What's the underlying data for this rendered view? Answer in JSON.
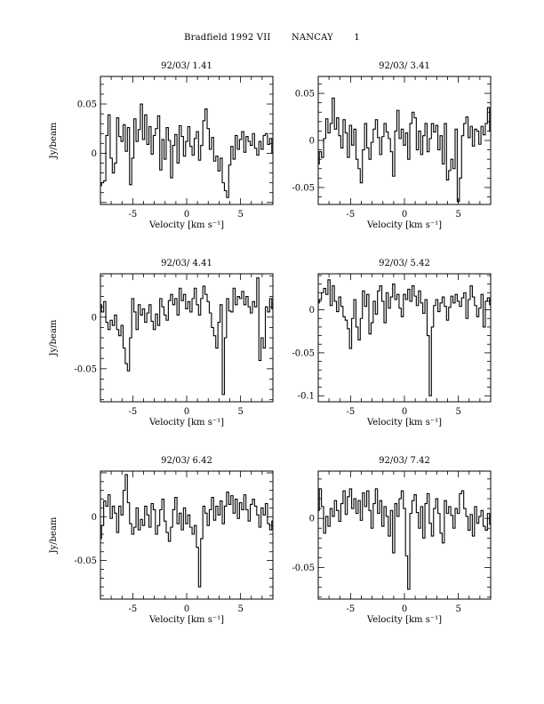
{
  "header": {
    "object": "Bradfield 1992 VII",
    "observatory": "NANCAY",
    "page_number": "1"
  },
  "chart_data": [
    {
      "type": "line",
      "title": "92/03/ 1.41",
      "xlabel": "Velocity [km s⁻¹]",
      "ylabel": "Jy/beam",
      "xlim": [
        -8,
        8
      ],
      "ylim": [
        -0.052,
        0.078
      ],
      "xticks": [
        "-5",
        "0",
        "5"
      ],
      "yticks": [
        {
          "value": 0,
          "label": "0"
        },
        {
          "value": 0.05,
          "label": "0.05"
        }
      ],
      "x": [
        -8.0,
        -7.8,
        -7.6,
        -7.4,
        -7.2,
        -7.0,
        -6.8,
        -6.6,
        -6.4,
        -6.2,
        -6.0,
        -5.8,
        -5.6,
        -5.4,
        -5.2,
        -5.0,
        -4.8,
        -4.6,
        -4.4,
        -4.2,
        -4.0,
        -3.8,
        -3.6,
        -3.4,
        -3.2,
        -3.0,
        -2.8,
        -2.6,
        -2.4,
        -2.2,
        -2.0,
        -1.8,
        -1.6,
        -1.4,
        -1.2,
        -1.0,
        -0.8,
        -0.6,
        -0.4,
        -0.2,
        0.0,
        0.2,
        0.4,
        0.6,
        0.8,
        1.0,
        1.2,
        1.4,
        1.6,
        1.8,
        2.0,
        2.2,
        2.4,
        2.6,
        2.8,
        3.0,
        3.2,
        3.4,
        3.6,
        3.8,
        4.0,
        4.2,
        4.4,
        4.6,
        4.8,
        5.0,
        5.2,
        5.4,
        5.6,
        5.8,
        6.0,
        6.2,
        6.4,
        6.6,
        6.8,
        7.0,
        7.2,
        7.4,
        7.6,
        7.8,
        8.0
      ],
      "values": [
        -0.033,
        -0.03,
        -0.028,
        0.018,
        0.039,
        -0.005,
        -0.02,
        -0.01,
        0.036,
        0.017,
        0.012,
        0.029,
        0.002,
        0.026,
        -0.032,
        -0.005,
        0.035,
        0.012,
        0.024,
        0.05,
        0.014,
        0.039,
        0.009,
        0.027,
        -0.001,
        0.018,
        0.025,
        0.038,
        -0.017,
        0.014,
        -0.006,
        0.026,
        0.013,
        -0.025,
        0.008,
        0.019,
        -0.01,
        0.028,
        0.017,
        -0.003,
        0.012,
        0.027,
        0.007,
        -0.002,
        0.015,
        0.022,
        -0.007,
        0.008,
        0.033,
        0.045,
        0.025,
        0.004,
        0.016,
        -0.008,
        -0.003,
        -0.018,
        -0.005,
        -0.03,
        -0.038,
        -0.045,
        -0.012,
        0.007,
        -0.006,
        0.018,
        0.004,
        0.014,
        0.022,
        0.001,
        0.017,
        0.012,
        0.008,
        0.02,
        0.005,
        -0.002,
        0.012,
        0.004,
        0.018,
        0.02,
        0.009,
        0.015,
        0.0
      ],
      "grid": false
    },
    {
      "type": "line",
      "title": "92/03/ 3.41",
      "xlabel": "Velocity [km s⁻¹]",
      "ylabel": "",
      "xlim": [
        -8,
        8
      ],
      "ylim": [
        -0.068,
        0.068
      ],
      "xticks": [
        "-5",
        "0",
        "5"
      ],
      "yticks": [
        {
          "value": -0.05,
          "label": "-0.05"
        },
        {
          "value": 0,
          "label": "0"
        },
        {
          "value": 0.05,
          "label": "0.05"
        }
      ],
      "x": [
        -8.0,
        -7.8,
        -7.6,
        -7.4,
        -7.2,
        -7.0,
        -6.8,
        -6.6,
        -6.4,
        -6.2,
        -6.0,
        -5.8,
        -5.6,
        -5.4,
        -5.2,
        -5.0,
        -4.8,
        -4.6,
        -4.4,
        -4.2,
        -4.0,
        -3.8,
        -3.6,
        -3.4,
        -3.2,
        -3.0,
        -2.8,
        -2.6,
        -2.4,
        -2.2,
        -2.0,
        -1.8,
        -1.6,
        -1.4,
        -1.2,
        -1.0,
        -0.8,
        -0.6,
        -0.4,
        -0.2,
        0.0,
        0.2,
        0.4,
        0.6,
        0.8,
        1.0,
        1.2,
        1.4,
        1.6,
        1.8,
        2.0,
        2.2,
        2.4,
        2.6,
        2.8,
        3.0,
        3.2,
        3.4,
        3.6,
        3.8,
        4.0,
        4.2,
        4.4,
        4.6,
        4.8,
        5.0,
        5.2,
        5.4,
        5.6,
        5.8,
        6.0,
        6.2,
        6.4,
        6.6,
        6.8,
        7.0,
        7.2,
        7.4,
        7.6,
        7.8,
        8.0
      ],
      "values": [
        -0.025,
        -0.012,
        -0.018,
        0.002,
        0.023,
        0.008,
        0.018,
        0.045,
        0.012,
        0.024,
        0.005,
        -0.008,
        0.022,
        0.008,
        -0.018,
        0.016,
        -0.005,
        0.012,
        -0.02,
        -0.03,
        -0.045,
        -0.01,
        0.018,
        -0.008,
        -0.02,
        -0.002,
        0.012,
        0.022,
        0.003,
        -0.015,
        0.004,
        0.018,
        0.009,
        0.002,
        -0.012,
        -0.038,
        0.01,
        0.032,
        0.002,
        0.012,
        -0.005,
        0.008,
        -0.02,
        0.018,
        0.03,
        0.024,
        -0.01,
        0.01,
        -0.015,
        0.005,
        0.018,
        -0.012,
        0.002,
        0.018,
        0.009,
        0.016,
        -0.01,
        0.005,
        -0.025,
        0.018,
        -0.042,
        -0.032,
        -0.02,
        -0.03,
        0.012,
        -0.065,
        -0.04,
        0.005,
        0.018,
        0.025,
        0.003,
        0.015,
        -0.006,
        0.012,
        0.01,
        -0.004,
        0.015,
        0.006,
        0.018,
        0.035,
        0.01
      ],
      "grid": false
    },
    {
      "type": "line",
      "title": "92/03/ 4.41",
      "xlabel": "Velocity [km s⁻¹]",
      "ylabel": "Jy/beam",
      "xlim": [
        -8,
        8
      ],
      "ylim": [
        -0.082,
        0.042
      ],
      "xticks": [
        "-5",
        "0",
        "5"
      ],
      "yticks": [
        {
          "value": -0.05,
          "label": "-0.05"
        },
        {
          "value": 0,
          "label": "0"
        }
      ],
      "x": [
        -8.0,
        -7.8,
        -7.6,
        -7.4,
        -7.2,
        -7.0,
        -6.8,
        -6.6,
        -6.4,
        -6.2,
        -6.0,
        -5.8,
        -5.6,
        -5.4,
        -5.2,
        -5.0,
        -4.8,
        -4.6,
        -4.4,
        -4.2,
        -4.0,
        -3.8,
        -3.6,
        -3.4,
        -3.2,
        -3.0,
        -2.8,
        -2.6,
        -2.4,
        -2.2,
        -2.0,
        -1.8,
        -1.6,
        -1.4,
        -1.2,
        -1.0,
        -0.8,
        -0.6,
        -0.4,
        -0.2,
        0.0,
        0.2,
        0.4,
        0.6,
        0.8,
        1.0,
        1.2,
        1.4,
        1.6,
        1.8,
        2.0,
        2.2,
        2.4,
        2.6,
        2.8,
        3.0,
        3.2,
        3.4,
        3.6,
        3.8,
        4.0,
        4.2,
        4.4,
        4.6,
        4.8,
        5.0,
        5.2,
        5.4,
        5.6,
        5.8,
        6.0,
        6.2,
        6.4,
        6.6,
        6.8,
        7.0,
        7.2,
        7.4,
        7.6,
        7.8,
        8.0
      ],
      "values": [
        0.012,
        0.005,
        0.015,
        -0.005,
        -0.012,
        -0.003,
        -0.008,
        0.002,
        -0.012,
        -0.018,
        -0.008,
        -0.03,
        -0.045,
        -0.052,
        -0.02,
        0.018,
        0.005,
        -0.012,
        0.012,
        0.002,
        0.008,
        -0.005,
        0.004,
        0.012,
        -0.004,
        -0.012,
        0.003,
        -0.008,
        0.018,
        0.01,
        0.002,
        -0.003,
        0.016,
        0.022,
        0.012,
        0.018,
        0.002,
        0.028,
        0.016,
        0.022,
        0.008,
        0.015,
        0.005,
        0.018,
        0.028,
        0.012,
        0.002,
        0.018,
        0.03,
        0.022,
        0.015,
        0.004,
        -0.01,
        -0.018,
        -0.03,
        -0.005,
        0.012,
        -0.075,
        -0.02,
        0.018,
        0.006,
        0.005,
        0.028,
        0.012,
        0.02,
        0.018,
        0.025,
        0.012,
        0.02,
        0.01,
        0.004,
        0.015,
        0.01,
        0.038,
        -0.042,
        -0.02,
        -0.03,
        0.01,
        0.005,
        0.018,
        0.008
      ],
      "grid": false
    },
    {
      "type": "line",
      "title": "92/03/ 5.42",
      "xlabel": "Velocity [km s⁻¹]",
      "ylabel": "",
      "xlim": [
        -8,
        8
      ],
      "ylim": [
        -0.107,
        0.042
      ],
      "xticks": [
        "-5",
        "0",
        "5"
      ],
      "yticks": [
        {
          "value": -0.1,
          "label": "-0.1"
        },
        {
          "value": -0.05,
          "label": "-0.05"
        },
        {
          "value": 0,
          "label": "0"
        }
      ],
      "x": [
        -8.0,
        -7.8,
        -7.6,
        -7.4,
        -7.2,
        -7.0,
        -6.8,
        -6.6,
        -6.4,
        -6.2,
        -6.0,
        -5.8,
        -5.6,
        -5.4,
        -5.2,
        -5.0,
        -4.8,
        -4.6,
        -4.4,
        -4.2,
        -4.0,
        -3.8,
        -3.6,
        -3.4,
        -3.2,
        -3.0,
        -2.8,
        -2.6,
        -2.4,
        -2.2,
        -2.0,
        -1.8,
        -1.6,
        -1.4,
        -1.2,
        -1.0,
        -0.8,
        -0.6,
        -0.4,
        -0.2,
        0.0,
        0.2,
        0.4,
        0.6,
        0.8,
        1.0,
        1.2,
        1.4,
        1.6,
        1.8,
        2.0,
        2.2,
        2.4,
        2.6,
        2.8,
        3.0,
        3.2,
        3.4,
        3.6,
        3.8,
        4.0,
        4.2,
        4.4,
        4.6,
        4.8,
        5.0,
        5.2,
        5.4,
        5.6,
        5.8,
        6.0,
        6.2,
        6.4,
        6.6,
        6.8,
        7.0,
        7.2,
        7.4,
        7.6,
        7.8,
        8.0
      ],
      "values": [
        0.008,
        0.012,
        0.02,
        0.025,
        0.018,
        0.035,
        0.005,
        0.028,
        0.01,
        -0.002,
        0.015,
        0.004,
        -0.008,
        -0.012,
        -0.022,
        -0.045,
        -0.01,
        0.012,
        -0.02,
        -0.035,
        -0.01,
        0.022,
        0.004,
        0.018,
        -0.028,
        -0.015,
        0.01,
        -0.005,
        0.022,
        0.028,
        0.01,
        -0.015,
        0.02,
        0.002,
        0.015,
        0.03,
        0.012,
        0.018,
        0.002,
        -0.008,
        0.018,
        0.012,
        0.024,
        0.01,
        0.028,
        0.016,
        0.005,
        0.022,
        0.008,
        -0.004,
        0.012,
        -0.03,
        -0.1,
        -0.02,
        0.005,
        0.012,
        -0.002,
        0.008,
        0.015,
        0.004,
        -0.012,
        0.003,
        0.016,
        0.008,
        0.018,
        0.01,
        0.004,
        0.014,
        0.02,
        -0.01,
        0.012,
        0.028,
        0.015,
        0.005,
        -0.008,
        0.002,
        0.018,
        -0.02,
        0.01,
        0.014,
        0.006
      ],
      "grid": false
    },
    {
      "type": "line",
      "title": "92/03/ 6.42",
      "xlabel": "Velocity [km s⁻¹]",
      "ylabel": "Jy/beam",
      "xlim": [
        -8,
        8
      ],
      "ylim": [
        -0.094,
        0.052
      ],
      "xticks": [
        "-5",
        "0",
        "5"
      ],
      "yticks": [
        {
          "value": -0.05,
          "label": "-0.05"
        },
        {
          "value": 0,
          "label": "0"
        }
      ],
      "x": [
        -8.0,
        -7.8,
        -7.6,
        -7.4,
        -7.2,
        -7.0,
        -6.8,
        -6.6,
        -6.4,
        -6.2,
        -6.0,
        -5.8,
        -5.6,
        -5.4,
        -5.2,
        -5.0,
        -4.8,
        -4.6,
        -4.4,
        -4.2,
        -4.0,
        -3.8,
        -3.6,
        -3.4,
        -3.2,
        -3.0,
        -2.8,
        -2.6,
        -2.4,
        -2.2,
        -2.0,
        -1.8,
        -1.6,
        -1.4,
        -1.2,
        -1.0,
        -0.8,
        -0.6,
        -0.4,
        -0.2,
        0.0,
        0.2,
        0.4,
        0.6,
        0.8,
        1.0,
        1.2,
        1.4,
        1.6,
        1.8,
        2.0,
        2.2,
        2.4,
        2.6,
        2.8,
        3.0,
        3.2,
        3.4,
        3.6,
        3.8,
        4.0,
        4.2,
        4.4,
        4.6,
        4.8,
        5.0,
        5.2,
        5.4,
        5.6,
        5.8,
        6.0,
        6.2,
        6.4,
        6.6,
        6.8,
        7.0,
        7.2,
        7.4,
        7.6,
        7.8,
        8.0
      ],
      "values": [
        -0.025,
        -0.01,
        0.018,
        0.012,
        0.025,
        -0.002,
        0.012,
        0.004,
        -0.018,
        0.012,
        0.002,
        0.03,
        0.048,
        0.016,
        -0.008,
        -0.02,
        -0.012,
        0.01,
        -0.015,
        -0.003,
        -0.01,
        0.012,
        0.002,
        -0.012,
        0.015,
        0.008,
        -0.02,
        -0.01,
        0.008,
        0.02,
        -0.005,
        -0.018,
        -0.028,
        -0.012,
        0.008,
        0.022,
        -0.008,
        0.004,
        -0.015,
        0.01,
        -0.008,
        0.002,
        -0.012,
        -0.02,
        -0.01,
        -0.035,
        -0.08,
        -0.025,
        0.012,
        0.004,
        -0.01,
        0.008,
        0.022,
        -0.004,
        0.012,
        0.002,
        0.018,
        -0.008,
        0.012,
        0.028,
        0.014,
        0.024,
        0.004,
        0.02,
        -0.002,
        0.016,
        0.008,
        0.025,
        0.008,
        -0.005,
        0.014,
        0.02,
        0.012,
        0.002,
        -0.012,
        0.01,
        0.002,
        0.015,
        -0.008,
        -0.015,
        -0.005
      ],
      "grid": false
    },
    {
      "type": "line",
      "title": "92/03/ 7.42",
      "xlabel": "Velocity [km s⁻¹]",
      "ylabel": "",
      "xlim": [
        -8,
        8
      ],
      "ylim": [
        -0.082,
        0.048
      ],
      "xticks": [
        "-5",
        "0",
        "5"
      ],
      "yticks": [
        {
          "value": -0.05,
          "label": "-0.05"
        },
        {
          "value": 0,
          "label": "0"
        }
      ],
      "x": [
        -8.0,
        -7.8,
        -7.6,
        -7.4,
        -7.2,
        -7.0,
        -6.8,
        -6.6,
        -6.4,
        -6.2,
        -6.0,
        -5.8,
        -5.6,
        -5.4,
        -5.2,
        -5.0,
        -4.8,
        -4.6,
        -4.4,
        -4.2,
        -4.0,
        -3.8,
        -3.6,
        -3.4,
        -3.2,
        -3.0,
        -2.8,
        -2.6,
        -2.4,
        -2.2,
        -2.0,
        -1.8,
        -1.6,
        -1.4,
        -1.2,
        -1.0,
        -0.8,
        -0.6,
        -0.4,
        -0.2,
        0.0,
        0.2,
        0.4,
        0.6,
        0.8,
        1.0,
        1.2,
        1.4,
        1.6,
        1.8,
        2.0,
        2.2,
        2.4,
        2.6,
        2.8,
        3.0,
        3.2,
        3.4,
        3.6,
        3.8,
        4.0,
        4.2,
        4.4,
        4.6,
        4.8,
        5.0,
        5.2,
        5.4,
        5.6,
        5.8,
        6.0,
        6.2,
        6.4,
        6.6,
        6.8,
        7.0,
        7.2,
        7.4,
        7.6,
        7.8,
        8.0
      ],
      "values": [
        0.008,
        0.03,
        0.012,
        -0.015,
        0.002,
        -0.008,
        0.01,
        0.002,
        0.018,
        0.008,
        -0.003,
        0.015,
        0.028,
        0.004,
        0.022,
        0.03,
        0.01,
        0.02,
        0.005,
        0.018,
        -0.002,
        0.026,
        0.012,
        0.028,
        0.008,
        -0.01,
        0.015,
        0.03,
        0.005,
        0.018,
        -0.008,
        0.012,
        0.002,
        -0.018,
        0.008,
        -0.035,
        0.015,
        0.002,
        0.02,
        0.028,
        0.01,
        -0.038,
        -0.072,
        0.005,
        0.018,
        0.024,
        0.006,
        -0.01,
        0.012,
        -0.02,
        0.015,
        0.025,
        -0.005,
        -0.018,
        0.01,
        0.02,
        0.005,
        -0.015,
        -0.025,
        0.018,
        0.005,
        0.012,
        0.003,
        -0.01,
        0.01,
        0.005,
        0.025,
        0.028,
        0.01,
        0.002,
        -0.012,
        0.004,
        -0.018,
        0.012,
        -0.005,
        0.002,
        0.008,
        -0.008,
        -0.012,
        0.005,
        -0.006
      ],
      "grid": false
    }
  ]
}
